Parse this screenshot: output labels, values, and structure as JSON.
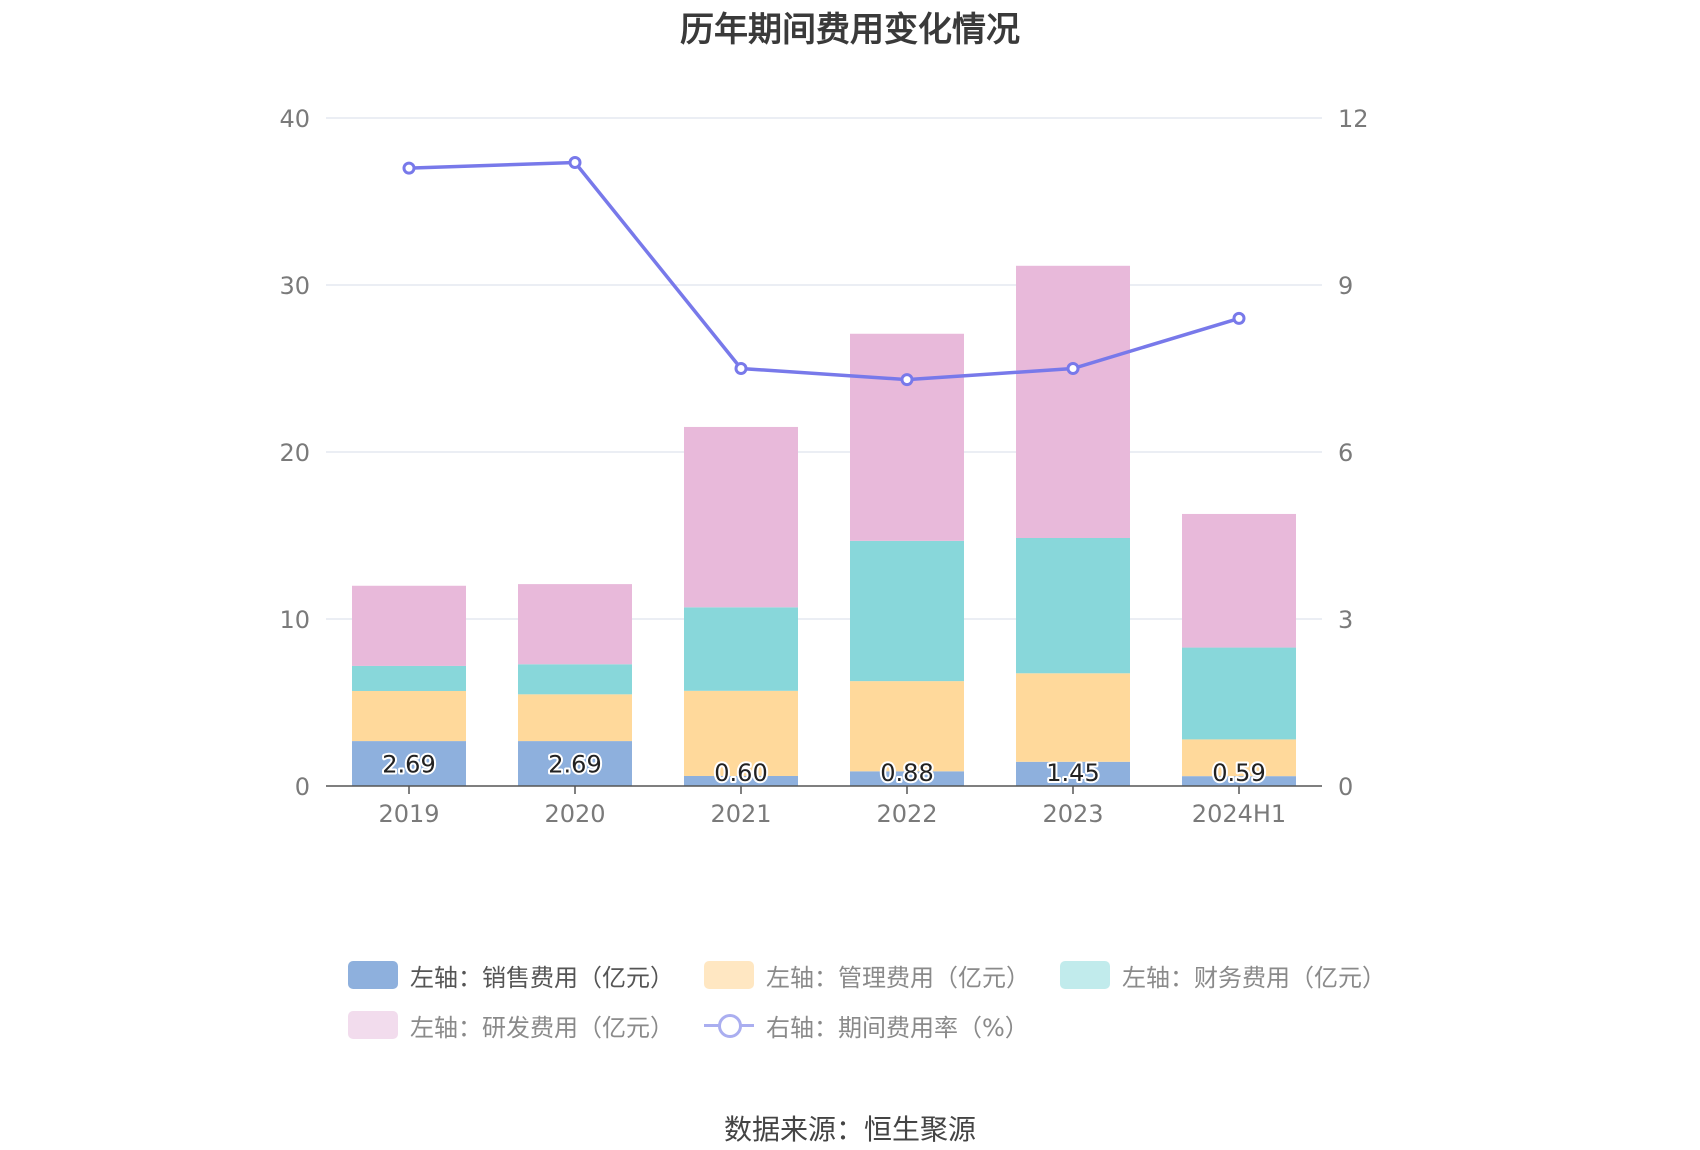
{
  "chart_data": {
    "type": "bar",
    "title": "历年期间费用变化情况",
    "categories": [
      "2019",
      "2020",
      "2021",
      "2022",
      "2023",
      "2024H1"
    ],
    "y_left": {
      "min": 0,
      "max": 40,
      "ticks": [
        0,
        10,
        20,
        30,
        40
      ]
    },
    "y_right": {
      "min": 0,
      "max": 12,
      "ticks": [
        0,
        3,
        6,
        9,
        12
      ]
    },
    "stacked_series": [
      {
        "name": "左轴：销售费用（亿元）",
        "color": "#8eb0dd",
        "values": [
          2.69,
          2.69,
          0.6,
          0.88,
          1.45,
          0.59
        ],
        "labels": [
          "2.69",
          "2.69",
          "0.60",
          "0.88",
          "1.45",
          "0.59"
        ]
      },
      {
        "name": "左轴：管理费用（亿元）",
        "color": "#ffd99b",
        "values": [
          3.0,
          2.8,
          5.1,
          5.4,
          5.3,
          2.2
        ]
      },
      {
        "name": "左轴：财务费用（亿元）",
        "color": "#88d7da",
        "values": [
          1.5,
          1.8,
          5.0,
          8.4,
          8.1,
          5.5
        ]
      },
      {
        "name": "左轴：研发费用（亿元）",
        "color": "#e8b9da",
        "values": [
          4.8,
          4.8,
          10.8,
          12.4,
          16.3,
          8.0
        ]
      }
    ],
    "line_series": {
      "name": "右轴：期间费用率（%）",
      "color": "#7879ea",
      "values": [
        11.1,
        11.2,
        7.5,
        7.3,
        7.5,
        8.4
      ]
    },
    "legend_position": "bottom",
    "grid": true
  },
  "source": "数据来源：恒生聚源"
}
